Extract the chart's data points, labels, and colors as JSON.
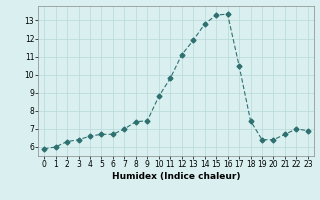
{
  "x": [
    0,
    1,
    2,
    3,
    4,
    5,
    6,
    7,
    8,
    9,
    10,
    11,
    12,
    13,
    14,
    15,
    16,
    17,
    18,
    19,
    20,
    21,
    22,
    23
  ],
  "y": [
    5.9,
    6.0,
    6.3,
    6.4,
    6.6,
    6.7,
    6.7,
    7.0,
    7.4,
    7.45,
    8.8,
    9.8,
    11.1,
    11.9,
    12.8,
    13.3,
    13.35,
    10.5,
    7.45,
    6.4,
    6.4,
    6.7,
    7.0,
    6.9
  ],
  "line_color": "#2e7070",
  "marker": "D",
  "marker_size": 2.5,
  "bg_color": "#daf0f0",
  "grid_color": "#b8d8d8",
  "xlabel": "Humidex (Indice chaleur)",
  "xlim": [
    -0.5,
    23.5
  ],
  "ylim": [
    5.5,
    13.8
  ],
  "yticks": [
    6,
    7,
    8,
    9,
    10,
    11,
    12,
    13
  ],
  "xticks": [
    0,
    1,
    2,
    3,
    4,
    5,
    6,
    7,
    8,
    9,
    10,
    11,
    12,
    13,
    14,
    15,
    16,
    17,
    18,
    19,
    20,
    21,
    22,
    23
  ],
  "tick_fontsize": 5.5,
  "xlabel_fontsize": 6.5
}
